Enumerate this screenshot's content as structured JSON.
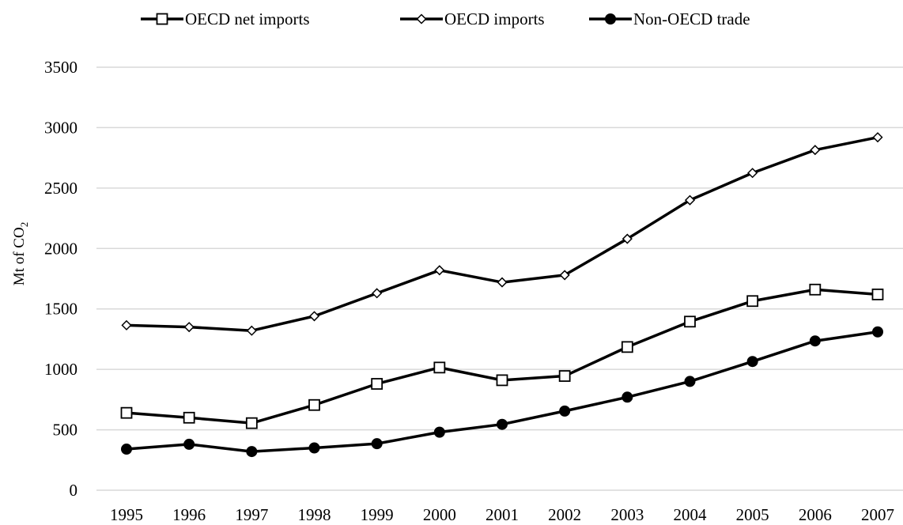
{
  "chart_data": {
    "type": "line",
    "title": "",
    "xlabel": "",
    "ylabel": "Mt of CO",
    "ylabel_subscript": "2",
    "categories": [
      "1995",
      "1996",
      "1997",
      "1998",
      "1999",
      "2000",
      "2001",
      "2002",
      "2003",
      "2004",
      "2005",
      "2006",
      "2007"
    ],
    "ylim": [
      0,
      3500
    ],
    "yticks": [
      0,
      500,
      1000,
      1500,
      2000,
      2500,
      3000,
      3500
    ],
    "grid": "horizontal",
    "legend_position": "top-center",
    "series": [
      {
        "name": "OECD net imports",
        "marker": "square-open",
        "color": "#000000",
        "values": [
          640,
          600,
          555,
          705,
          880,
          1015,
          910,
          945,
          1185,
          1395,
          1565,
          1660,
          1620
        ]
      },
      {
        "name": "OECD imports",
        "marker": "diamond-open",
        "color": "#000000",
        "values": [
          1365,
          1350,
          1320,
          1440,
          1630,
          1820,
          1720,
          1780,
          2080,
          2400,
          2625,
          2815,
          2920
        ]
      },
      {
        "name": "Non-OECD trade",
        "marker": "circle-filled",
        "color": "#000000",
        "values": [
          340,
          380,
          320,
          350,
          385,
          480,
          545,
          655,
          770,
          900,
          1065,
          1235,
          1310
        ]
      }
    ]
  }
}
